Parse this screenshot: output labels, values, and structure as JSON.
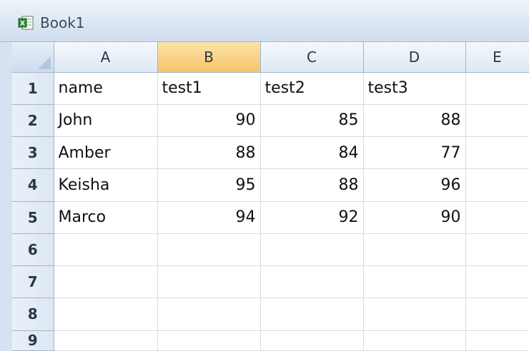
{
  "window": {
    "title": "Book1",
    "icon": "excel-workbook-icon"
  },
  "sheet": {
    "columns": [
      "A",
      "B",
      "C",
      "D",
      "E"
    ],
    "selected_column": "B",
    "rows": [
      {
        "num": "1",
        "cells": [
          "name",
          "test1",
          "test2",
          "test3",
          ""
        ]
      },
      {
        "num": "2",
        "cells": [
          "John",
          "90",
          "85",
          "88",
          ""
        ]
      },
      {
        "num": "3",
        "cells": [
          "Amber",
          "88",
          "84",
          "77",
          ""
        ]
      },
      {
        "num": "4",
        "cells": [
          "Keisha",
          "95",
          "88",
          "96",
          ""
        ]
      },
      {
        "num": "5",
        "cells": [
          "Marco",
          "94",
          "92",
          "90",
          ""
        ]
      },
      {
        "num": "6",
        "cells": [
          "",
          "",
          "",
          "",
          ""
        ]
      },
      {
        "num": "7",
        "cells": [
          "",
          "",
          "",
          "",
          ""
        ]
      },
      {
        "num": "8",
        "cells": [
          "",
          "",
          "",
          "",
          ""
        ]
      },
      {
        "num": "9",
        "cells": [
          "",
          "",
          "",
          "",
          ""
        ]
      }
    ]
  }
}
